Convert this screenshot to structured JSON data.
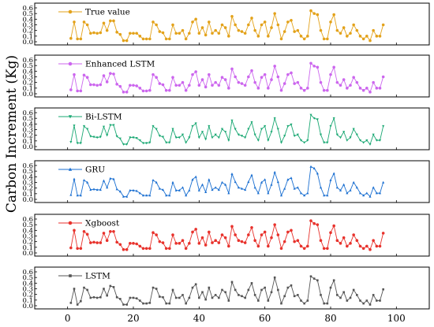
{
  "chart_data": {
    "type": "line",
    "ylabel": "Carbon Increment (Kg)",
    "xlabel": "",
    "xlim": [
      -10,
      110
    ],
    "xticks": [
      0,
      20,
      40,
      60,
      80,
      100
    ],
    "xtick_labels": [
      "0",
      "20",
      "40",
      "60",
      "80",
      "100"
    ],
    "ylim": [
      0,
      0.6
    ],
    "yticks": [
      0.0,
      0.1,
      0.2,
      0.3,
      0.4,
      0.5,
      0.6
    ],
    "ytick_labels": [
      "0.0",
      "0.1",
      "0.2",
      "0.3",
      "0.4",
      "0.5",
      "0.6"
    ],
    "legend_position": "top-left",
    "grid": false,
    "x": [
      1,
      2,
      3,
      4,
      5,
      6,
      7,
      8,
      9,
      10,
      11,
      12,
      13,
      14,
      15,
      16,
      17,
      18,
      19,
      20,
      21,
      22,
      23,
      24,
      25,
      26,
      27,
      28,
      29,
      30,
      31,
      32,
      33,
      34,
      35,
      36,
      37,
      38,
      39,
      40,
      41,
      42,
      43,
      44,
      45,
      46,
      47,
      48,
      49,
      50,
      51,
      52,
      53,
      54,
      55,
      56,
      57,
      58,
      59,
      60,
      61,
      62,
      63,
      64,
      65,
      66,
      67,
      68,
      69,
      70,
      71,
      72,
      73,
      74,
      75,
      76,
      77,
      78,
      79,
      80,
      81,
      82,
      83,
      84,
      85,
      86,
      87,
      88,
      89,
      90,
      91,
      92,
      93,
      94,
      95,
      96
    ],
    "series": [
      {
        "name": "True value",
        "color": "#e3a21a",
        "marker": "circle",
        "values": [
          0.06,
          0.35,
          0.05,
          0.05,
          0.35,
          0.3,
          0.15,
          0.16,
          0.15,
          0.16,
          0.33,
          0.2,
          0.37,
          0.37,
          0.17,
          0.13,
          0.02,
          0.02,
          0.15,
          0.15,
          0.15,
          0.1,
          0.05,
          0.05,
          0.05,
          0.35,
          0.3,
          0.18,
          0.16,
          0.05,
          0.05,
          0.3,
          0.15,
          0.15,
          0.2,
          0.05,
          0.15,
          0.35,
          0.4,
          0.15,
          0.25,
          0.12,
          0.35,
          0.15,
          0.2,
          0.15,
          0.3,
          0.25,
          0.1,
          0.45,
          0.3,
          0.2,
          0.18,
          0.15,
          0.3,
          0.42,
          0.2,
          0.1,
          0.3,
          0.35,
          0.1,
          0.25,
          0.5,
          0.3,
          0.05,
          0.18,
          0.35,
          0.38,
          0.18,
          0.2,
          0.1,
          0.05,
          0.1,
          0.55,
          0.5,
          0.48,
          0.2,
          0.05,
          0.05,
          0.35,
          0.48,
          0.2,
          0.15,
          0.25,
          0.1,
          0.15,
          0.3,
          0.2,
          0.1,
          0.05,
          0.1,
          0.02,
          0.2,
          0.1,
          0.1,
          0.3
        ]
      },
      {
        "name": "Enhanced LSTM",
        "color": "#cc66ee",
        "marker": "circle",
        "values": [
          0.07,
          0.34,
          0.05,
          0.05,
          0.33,
          0.29,
          0.16,
          0.16,
          0.15,
          0.16,
          0.32,
          0.21,
          0.36,
          0.35,
          0.17,
          0.13,
          0.03,
          0.03,
          0.15,
          0.15,
          0.14,
          0.1,
          0.05,
          0.05,
          0.06,
          0.34,
          0.29,
          0.18,
          0.16,
          0.06,
          0.06,
          0.29,
          0.15,
          0.15,
          0.2,
          0.06,
          0.15,
          0.34,
          0.39,
          0.15,
          0.25,
          0.12,
          0.34,
          0.15,
          0.2,
          0.15,
          0.29,
          0.25,
          0.1,
          0.44,
          0.3,
          0.2,
          0.18,
          0.15,
          0.3,
          0.41,
          0.2,
          0.1,
          0.29,
          0.34,
          0.1,
          0.25,
          0.49,
          0.3,
          0.06,
          0.18,
          0.34,
          0.37,
          0.18,
          0.2,
          0.1,
          0.06,
          0.1,
          0.54,
          0.49,
          0.47,
          0.2,
          0.06,
          0.06,
          0.34,
          0.47,
          0.2,
          0.15,
          0.25,
          0.1,
          0.15,
          0.29,
          0.2,
          0.1,
          0.06,
          0.1,
          0.03,
          0.2,
          0.1,
          0.1,
          0.3
        ]
      },
      {
        "name": "Bi-LSTM",
        "color": "#1aa873",
        "marker": "triangle-down",
        "values": [
          0.08,
          0.37,
          0.06,
          0.06,
          0.36,
          0.31,
          0.18,
          0.17,
          0.16,
          0.17,
          0.35,
          0.2,
          0.38,
          0.38,
          0.18,
          0.14,
          0.04,
          0.04,
          0.16,
          0.16,
          0.15,
          0.11,
          0.06,
          0.06,
          0.07,
          0.36,
          0.31,
          0.19,
          0.17,
          0.07,
          0.07,
          0.31,
          0.16,
          0.16,
          0.21,
          0.07,
          0.16,
          0.36,
          0.41,
          0.16,
          0.26,
          0.13,
          0.36,
          0.16,
          0.21,
          0.16,
          0.31,
          0.26,
          0.11,
          0.46,
          0.31,
          0.21,
          0.19,
          0.16,
          0.31,
          0.43,
          0.21,
          0.11,
          0.31,
          0.36,
          0.11,
          0.26,
          0.5,
          0.31,
          0.07,
          0.19,
          0.36,
          0.39,
          0.19,
          0.21,
          0.11,
          0.07,
          0.11,
          0.56,
          0.5,
          0.48,
          0.21,
          0.07,
          0.07,
          0.36,
          0.5,
          0.21,
          0.16,
          0.26,
          0.11,
          0.16,
          0.31,
          0.21,
          0.11,
          0.07,
          0.11,
          0.04,
          0.21,
          0.11,
          0.11,
          0.36
        ]
      },
      {
        "name": "GRU",
        "color": "#1a6fd1",
        "marker": "triangle-up",
        "values": [
          0.08,
          0.36,
          0.07,
          0.07,
          0.34,
          0.3,
          0.17,
          0.18,
          0.17,
          0.17,
          0.33,
          0.21,
          0.37,
          0.36,
          0.18,
          0.14,
          0.05,
          0.05,
          0.16,
          0.16,
          0.15,
          0.11,
          0.07,
          0.07,
          0.07,
          0.34,
          0.3,
          0.19,
          0.17,
          0.07,
          0.07,
          0.3,
          0.16,
          0.16,
          0.21,
          0.07,
          0.16,
          0.35,
          0.4,
          0.16,
          0.26,
          0.13,
          0.35,
          0.17,
          0.21,
          0.17,
          0.3,
          0.26,
          0.11,
          0.45,
          0.31,
          0.21,
          0.19,
          0.17,
          0.31,
          0.43,
          0.21,
          0.11,
          0.3,
          0.35,
          0.11,
          0.26,
          0.48,
          0.31,
          0.07,
          0.19,
          0.35,
          0.38,
          0.19,
          0.21,
          0.11,
          0.07,
          0.11,
          0.58,
          0.55,
          0.46,
          0.21,
          0.07,
          0.07,
          0.34,
          0.46,
          0.21,
          0.16,
          0.26,
          0.11,
          0.16,
          0.3,
          0.21,
          0.11,
          0.07,
          0.11,
          0.05,
          0.21,
          0.11,
          0.11,
          0.3
        ]
      },
      {
        "name": "Xgboost",
        "color": "#e8322c",
        "marker": "circle",
        "values": [
          0.09,
          0.4,
          0.08,
          0.08,
          0.38,
          0.33,
          0.18,
          0.19,
          0.18,
          0.18,
          0.35,
          0.22,
          0.38,
          0.38,
          0.19,
          0.15,
          0.06,
          0.06,
          0.17,
          0.17,
          0.16,
          0.12,
          0.08,
          0.08,
          0.08,
          0.36,
          0.32,
          0.2,
          0.18,
          0.08,
          0.08,
          0.32,
          0.17,
          0.17,
          0.22,
          0.08,
          0.17,
          0.37,
          0.42,
          0.17,
          0.27,
          0.14,
          0.37,
          0.18,
          0.22,
          0.18,
          0.32,
          0.27,
          0.12,
          0.47,
          0.32,
          0.22,
          0.2,
          0.18,
          0.32,
          0.45,
          0.22,
          0.12,
          0.32,
          0.37,
          0.12,
          0.27,
          0.5,
          0.32,
          0.08,
          0.2,
          0.37,
          0.4,
          0.2,
          0.22,
          0.12,
          0.08,
          0.12,
          0.57,
          0.52,
          0.5,
          0.22,
          0.08,
          0.08,
          0.36,
          0.48,
          0.22,
          0.17,
          0.27,
          0.12,
          0.17,
          0.32,
          0.22,
          0.12,
          0.08,
          0.12,
          0.06,
          0.22,
          0.12,
          0.12,
          0.35
        ]
      },
      {
        "name": "LSTM",
        "color": "#555555",
        "marker": "square",
        "values": [
          0.05,
          0.3,
          0.02,
          0.08,
          0.32,
          0.28,
          0.14,
          0.15,
          0.14,
          0.15,
          0.3,
          0.18,
          0.35,
          0.33,
          0.15,
          0.12,
          0.02,
          0.02,
          0.14,
          0.14,
          0.13,
          0.09,
          0.04,
          0.04,
          0.05,
          0.32,
          0.3,
          0.16,
          0.15,
          0.04,
          0.04,
          0.28,
          0.14,
          0.14,
          0.19,
          0.04,
          0.14,
          0.32,
          0.38,
          0.14,
          0.24,
          0.11,
          0.32,
          0.14,
          0.19,
          0.14,
          0.28,
          0.24,
          0.09,
          0.42,
          0.28,
          0.19,
          0.17,
          0.14,
          0.28,
          0.4,
          0.19,
          0.09,
          0.28,
          0.32,
          0.09,
          0.24,
          0.5,
          0.28,
          0.04,
          0.17,
          0.32,
          0.36,
          0.17,
          0.19,
          0.09,
          0.04,
          0.09,
          0.52,
          0.48,
          0.45,
          0.19,
          0.04,
          0.04,
          0.32,
          0.45,
          0.19,
          0.14,
          0.24,
          0.09,
          0.14,
          0.28,
          0.19,
          0.09,
          0.04,
          0.09,
          0.02,
          0.19,
          0.09,
          0.09,
          0.29
        ]
      }
    ]
  }
}
